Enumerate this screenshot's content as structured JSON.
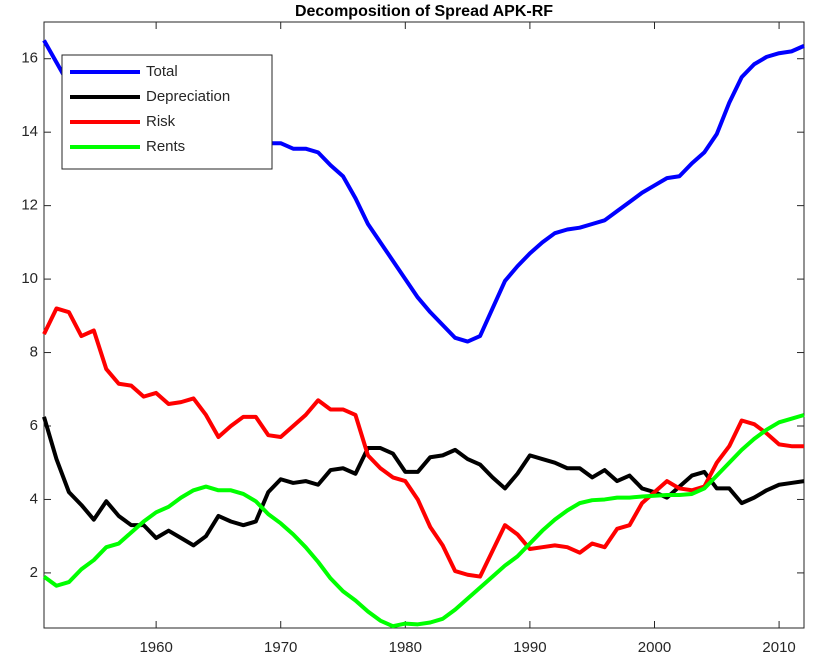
{
  "chart_data": {
    "type": "line",
    "title": "Decomposition of Spread APK-RF",
    "x": [
      1951,
      1952,
      1953,
      1954,
      1955,
      1956,
      1957,
      1958,
      1959,
      1960,
      1961,
      1962,
      1963,
      1964,
      1965,
      1966,
      1967,
      1968,
      1969,
      1970,
      1971,
      1972,
      1973,
      1974,
      1975,
      1976,
      1977,
      1978,
      1979,
      1980,
      1981,
      1982,
      1983,
      1984,
      1985,
      1986,
      1987,
      1988,
      1989,
      1990,
      1991,
      1992,
      1993,
      1994,
      1995,
      1996,
      1997,
      1998,
      1999,
      2000,
      2001,
      2002,
      2003,
      2004,
      2005,
      2006,
      2007,
      2008,
      2009,
      2010,
      2011,
      2012
    ],
    "series": [
      {
        "name": "Total",
        "color": "#0000ff",
        "values": [
          16.5,
          15.9,
          15.3,
          15.0,
          14.7,
          14.5,
          14.3,
          14.2,
          14.1,
          14.0,
          13.9,
          13.85,
          13.8,
          13.8,
          13.75,
          13.7,
          13.7,
          13.7,
          13.7,
          13.7,
          13.55,
          13.55,
          13.45,
          13.1,
          12.8,
          12.2,
          11.5,
          11.0,
          10.5,
          10.0,
          9.5,
          9.1,
          8.75,
          8.4,
          8.3,
          8.45,
          9.2,
          9.95,
          10.35,
          10.7,
          11.0,
          11.25,
          11.35,
          11.4,
          11.5,
          11.6,
          11.85,
          12.1,
          12.35,
          12.55,
          12.75,
          12.8,
          13.15,
          13.45,
          13.95,
          14.8,
          15.5,
          15.85,
          16.05,
          16.15,
          16.2,
          16.35
        ]
      },
      {
        "name": "Depreciation",
        "color": "#000000",
        "values": [
          6.25,
          5.1,
          4.2,
          3.85,
          3.45,
          3.95,
          3.55,
          3.3,
          3.3,
          2.95,
          3.15,
          2.95,
          2.75,
          3.0,
          3.55,
          3.4,
          3.3,
          3.4,
          4.2,
          4.55,
          4.45,
          4.5,
          4.4,
          4.8,
          4.85,
          4.7,
          5.4,
          5.4,
          5.25,
          4.75,
          4.75,
          5.15,
          5.2,
          5.35,
          5.1,
          4.95,
          4.6,
          4.3,
          4.7,
          5.2,
          5.1,
          5.0,
          4.85,
          4.85,
          4.6,
          4.8,
          4.5,
          4.65,
          4.3,
          4.2,
          4.05,
          4.35,
          4.65,
          4.75,
          4.3,
          4.3,
          3.9,
          4.05,
          4.25,
          4.4,
          4.45,
          4.5
        ]
      },
      {
        "name": "Risk",
        "color": "#ff0000",
        "values": [
          8.5,
          9.2,
          9.1,
          8.45,
          8.6,
          7.55,
          7.15,
          7.1,
          6.8,
          6.9,
          6.6,
          6.65,
          6.75,
          6.3,
          5.7,
          6.0,
          6.25,
          6.25,
          5.75,
          5.7,
          6.0,
          6.3,
          6.7,
          6.45,
          6.45,
          6.3,
          5.2,
          4.85,
          4.6,
          4.5,
          4.0,
          3.25,
          2.75,
          2.05,
          1.95,
          1.9,
          2.6,
          3.3,
          3.05,
          2.65,
          2.7,
          2.75,
          2.7,
          2.55,
          2.8,
          2.7,
          3.2,
          3.3,
          3.9,
          4.2,
          4.5,
          4.3,
          4.25,
          4.35,
          5.0,
          5.45,
          6.15,
          6.05,
          5.8,
          5.5,
          5.45,
          5.45
        ]
      },
      {
        "name": "Rents",
        "color": "#00ff00",
        "values": [
          1.9,
          1.65,
          1.75,
          2.1,
          2.35,
          2.7,
          2.8,
          3.1,
          3.4,
          3.65,
          3.8,
          4.05,
          4.25,
          4.35,
          4.25,
          4.25,
          4.15,
          3.95,
          3.6,
          3.35,
          3.05,
          2.7,
          2.3,
          1.85,
          1.5,
          1.25,
          0.95,
          0.7,
          0.55,
          0.62,
          0.6,
          0.65,
          0.75,
          1.0,
          1.3,
          1.6,
          1.9,
          2.2,
          2.45,
          2.8,
          3.15,
          3.45,
          3.7,
          3.9,
          3.98,
          4.0,
          4.05,
          4.05,
          4.08,
          4.1,
          4.12,
          4.12,
          4.15,
          4.3,
          4.65,
          5.0,
          5.35,
          5.65,
          5.9,
          6.1,
          6.2,
          6.3
        ]
      }
    ],
    "xlim": [
      1951,
      2012
    ],
    "xticks": [
      1960,
      1970,
      1980,
      1990,
      2000,
      2010
    ],
    "ylim": [
      0.5,
      17
    ],
    "yticks": [
      2,
      4,
      6,
      8,
      10,
      12,
      14,
      16
    ],
    "legend": "upper-left"
  }
}
